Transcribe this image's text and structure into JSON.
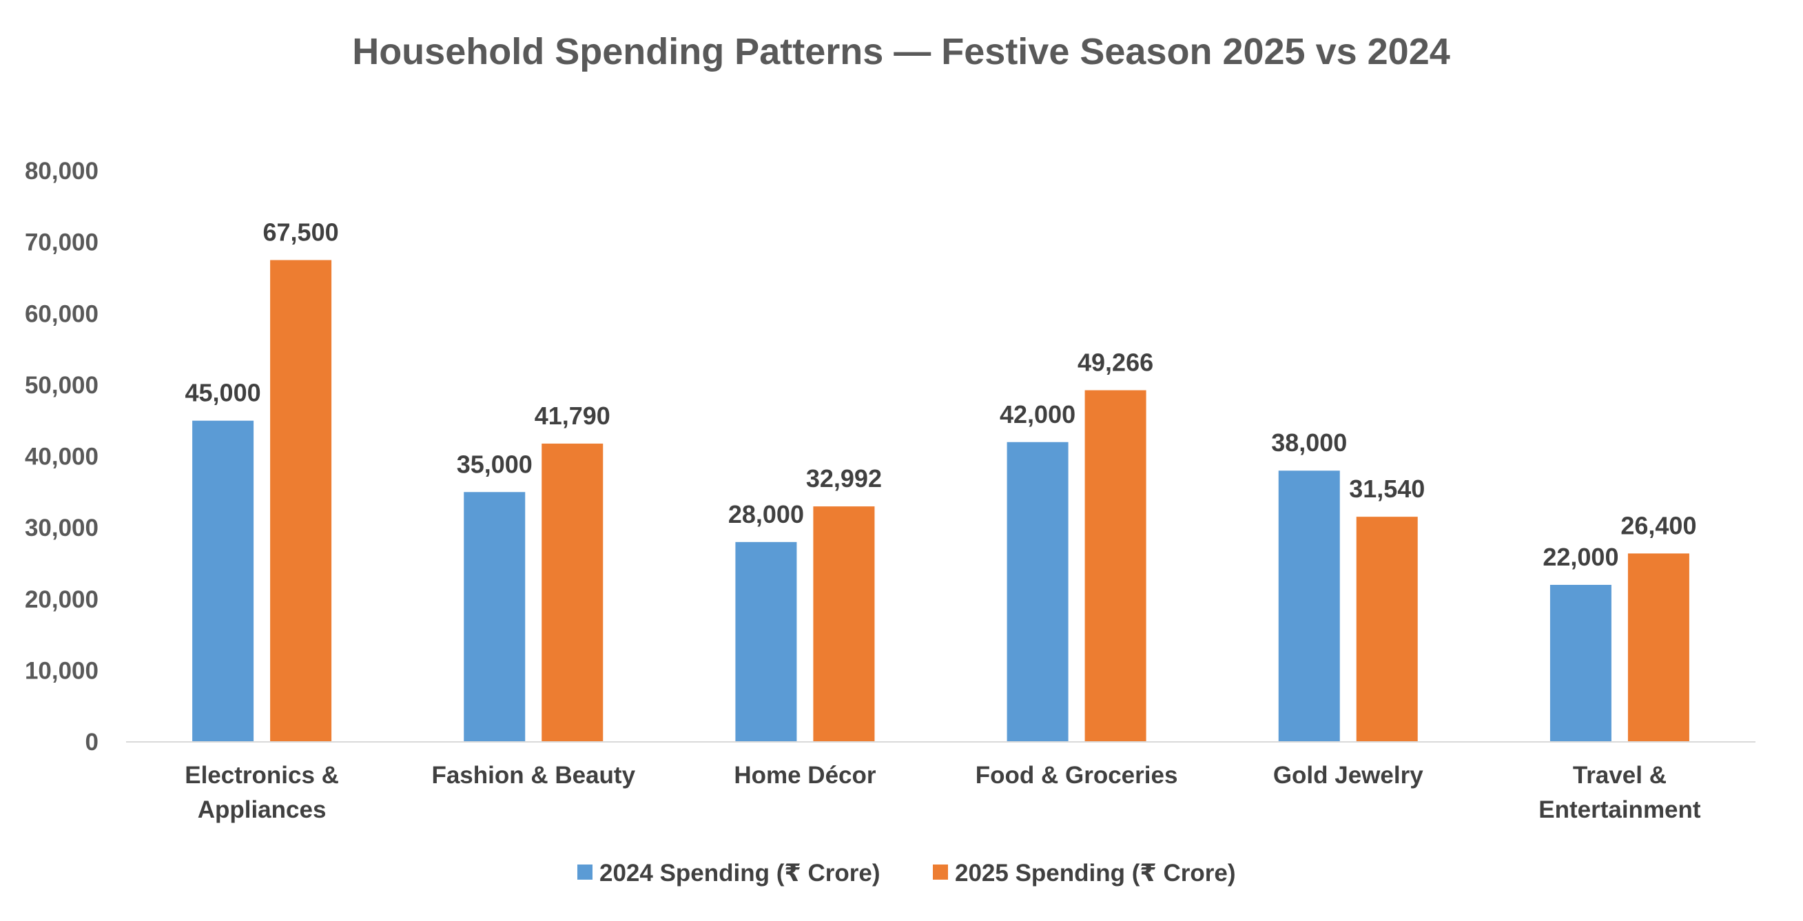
{
  "chart_data": {
    "type": "bar",
    "title": "Household Spending Patterns — Festive Season 2025 vs 2024",
    "xlabel": "",
    "ylabel": "",
    "ylim": [
      0,
      80000
    ],
    "yticks": [
      0,
      10000,
      20000,
      30000,
      40000,
      50000,
      60000,
      70000,
      80000
    ],
    "ytick_labels": [
      "0",
      "10,000",
      "20,000",
      "30,000",
      "40,000",
      "50,000",
      "60,000",
      "70,000",
      "80,000"
    ],
    "grid": false,
    "legend_position": "bottom-center",
    "categories": [
      [
        "Electronics &",
        "Appliances"
      ],
      [
        "Fashion & Beauty"
      ],
      [
        "Home Décor"
      ],
      [
        "Food & Groceries"
      ],
      [
        "Gold Jewelry"
      ],
      [
        "Travel &",
        "Entertainment"
      ]
    ],
    "series": [
      {
        "name": "2024 Spending (₹ Crore)",
        "color": "#5B9BD5",
        "values": [
          45000,
          35000,
          28000,
          42000,
          38000,
          22000
        ],
        "labels": [
          "45,000",
          "35,000",
          "28,000",
          "42,000",
          "38,000",
          "22,000"
        ]
      },
      {
        "name": "2025 Spending (₹ Crore)",
        "color": "#ED7D31",
        "values": [
          67500,
          41790,
          32992,
          49266,
          31540,
          26400
        ],
        "labels": [
          "67,500",
          "41,790",
          "32,992",
          "49,266",
          "31,540",
          "26,400"
        ]
      }
    ]
  }
}
